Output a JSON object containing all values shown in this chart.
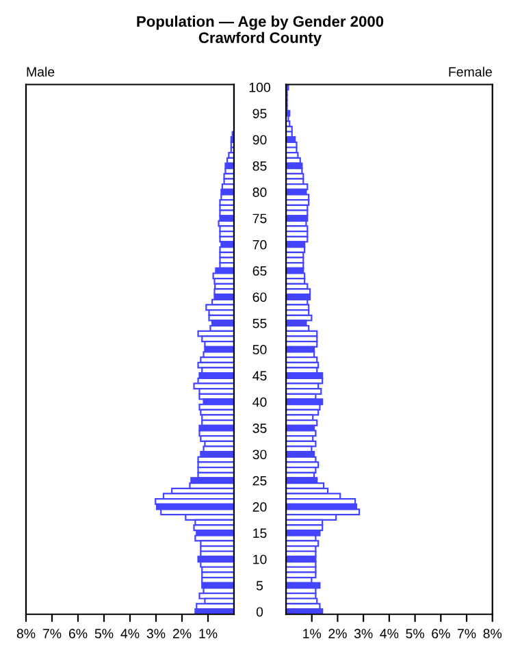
{
  "chart_data": [
    {
      "type": "bar",
      "orientation": "horizontal",
      "title": "Population — Age by Gender 2000",
      "subtitle": "Crawford County",
      "annotations": [
        "Male"
      ],
      "categories": [
        "100",
        null,
        null,
        null,
        null,
        "95",
        null,
        null,
        null,
        null,
        "90",
        null,
        null,
        null,
        null,
        "85",
        null,
        null,
        null,
        null,
        "80",
        null,
        null,
        null,
        null,
        "75",
        null,
        null,
        null,
        null,
        "70",
        null,
        null,
        null,
        null,
        "65",
        null,
        null,
        null,
        null,
        "60",
        null,
        null,
        null,
        null,
        "55",
        null,
        null,
        null,
        null,
        "50",
        null,
        null,
        null,
        null,
        "45",
        null,
        null,
        null,
        null,
        "40",
        null,
        null,
        null,
        null,
        "35",
        null,
        null,
        null,
        null,
        "30",
        null,
        null,
        null,
        null,
        "25",
        null,
        null,
        null,
        null,
        "20",
        null,
        null,
        null,
        null,
        "15",
        null,
        null,
        null,
        null,
        "10",
        null,
        null,
        null,
        null,
        "5",
        null,
        null,
        null,
        null,
        "0"
      ],
      "values": [
        null,
        null,
        null,
        null,
        null,
        null,
        null,
        null,
        null,
        0.06,
        0.11,
        0.11,
        0.11,
        0.2,
        0.26,
        0.33,
        0.33,
        0.38,
        0.38,
        0.45,
        0.49,
        0.49,
        0.54,
        0.54,
        0.54,
        0.54,
        0.59,
        0.54,
        0.54,
        0.54,
        0.49,
        0.54,
        0.54,
        0.54,
        0.54,
        0.7,
        0.8,
        0.75,
        0.73,
        0.75,
        0.75,
        0.84,
        1.07,
        0.96,
        0.96,
        0.84,
        0.91,
        1.38,
        1.23,
        1.12,
        1.12,
        1.17,
        1.28,
        1.38,
        1.23,
        1.33,
        1.38,
        1.54,
        1.33,
        1.33,
        1.17,
        1.33,
        1.28,
        1.23,
        1.23,
        1.33,
        1.33,
        1.28,
        1.12,
        1.17,
        1.28,
        1.38,
        1.38,
        1.38,
        1.38,
        1.65,
        1.7,
        2.39,
        2.71,
        3.02,
        2.97,
        2.81,
        1.86,
        1.49,
        1.54,
        1.44,
        1.49,
        1.28,
        1.28,
        1.28,
        1.38,
        1.28,
        1.23,
        1.23,
        1.23,
        1.23,
        1.17,
        1.33,
        1.12,
        1.44,
        1.49
      ],
      "colors": [
        "#4444ff",
        "#ffffff",
        "#ffffff",
        "#ffffff",
        "#ffffff",
        "#4444ff",
        "#ffffff",
        "#ffffff",
        "#ffffff",
        "#ffffff",
        "#4444ff",
        "#ffffff",
        "#ffffff",
        "#ffffff",
        "#ffffff",
        "#4444ff",
        "#ffffff",
        "#ffffff",
        "#ffffff",
        "#ffffff",
        "#4444ff",
        "#ffffff",
        "#ffffff",
        "#ffffff",
        "#ffffff",
        "#4444ff",
        "#ffffff",
        "#ffffff",
        "#ffffff",
        "#ffffff",
        "#4444ff",
        "#ffffff",
        "#ffffff",
        "#ffffff",
        "#ffffff",
        "#4444ff",
        "#ffffff",
        "#ffffff",
        "#ffffff",
        "#ffffff",
        "#4444ff",
        "#ffffff",
        "#ffffff",
        "#ffffff",
        "#ffffff",
        "#4444ff",
        "#ffffff",
        "#ffffff",
        "#ffffff",
        "#ffffff",
        "#4444ff",
        "#ffffff",
        "#ffffff",
        "#ffffff",
        "#ffffff",
        "#4444ff",
        "#ffffff",
        "#ffffff",
        "#ffffff",
        "#ffffff",
        "#4444ff",
        "#ffffff",
        "#ffffff",
        "#ffffff",
        "#ffffff",
        "#4444ff",
        "#ffffff",
        "#ffffff",
        "#ffffff",
        "#ffffff",
        "#4444ff",
        "#ffffff",
        "#ffffff",
        "#ffffff",
        "#ffffff",
        "#4444ff",
        "#ffffff",
        "#ffffff",
        "#ffffff",
        "#ffffff",
        "#4444ff",
        "#ffffff",
        "#ffffff",
        "#ffffff",
        "#ffffff",
        "#4444ff",
        "#ffffff",
        "#ffffff",
        "#ffffff",
        "#ffffff",
        "#4444ff",
        "#ffffff",
        "#ffffff",
        "#ffffff",
        "#ffffff",
        "#4444ff",
        "#ffffff",
        "#ffffff",
        "#ffffff",
        "#ffffff",
        "#4444ff"
      ],
      "xlim": [
        8,
        0
      ],
      "xticks": [
        {
          "value": 8,
          "label": "8%"
        },
        {
          "value": 7,
          "label": "7%"
        },
        {
          "value": 6,
          "label": "6%"
        },
        {
          "value": 5,
          "label": "5%"
        },
        {
          "value": 4,
          "label": "4%"
        },
        {
          "value": 3,
          "label": "3%"
        },
        {
          "value": 2,
          "label": "2%"
        },
        {
          "value": 1,
          "label": "1%"
        }
      ],
      "grid": false,
      "legend": false
    },
    {
      "type": "bar",
      "orientation": "horizontal",
      "annotations": [
        "Female"
      ],
      "tick_labels": "x",
      "categories": [
        "100",
        null,
        null,
        null,
        null,
        "95",
        null,
        null,
        null,
        null,
        "90",
        null,
        null,
        null,
        null,
        "85",
        null,
        null,
        null,
        null,
        "80",
        null,
        null,
        null,
        null,
        "75",
        null,
        null,
        null,
        null,
        "70",
        null,
        null,
        null,
        null,
        "65",
        null,
        null,
        null,
        null,
        "60",
        null,
        null,
        null,
        null,
        "55",
        null,
        null,
        null,
        null,
        "50",
        null,
        null,
        null,
        null,
        "45",
        null,
        null,
        null,
        null,
        "40",
        null,
        null,
        null,
        null,
        "35",
        null,
        null,
        null,
        null,
        "30",
        null,
        null,
        null,
        null,
        "25",
        null,
        null,
        null,
        null,
        "20",
        null,
        null,
        null,
        null,
        "15",
        null,
        null,
        null,
        null,
        "10",
        null,
        null,
        null,
        null,
        "5",
        null,
        null,
        null,
        null,
        "0"
      ],
      "values": [
        0.09,
        0.04,
        0.04,
        0.04,
        0.04,
        0.14,
        0.09,
        0.14,
        0.23,
        0.23,
        0.35,
        0.41,
        0.41,
        0.46,
        0.55,
        0.62,
        0.62,
        0.67,
        0.67,
        0.83,
        0.78,
        0.88,
        0.88,
        0.83,
        0.83,
        0.83,
        0.78,
        0.83,
        0.83,
        0.83,
        0.72,
        0.72,
        0.67,
        0.67,
        0.67,
        0.67,
        0.72,
        0.72,
        0.83,
        0.93,
        0.93,
        0.83,
        0.88,
        0.88,
        0.99,
        0.78,
        0.88,
        1.2,
        1.2,
        1.2,
        1.09,
        1.09,
        1.2,
        1.25,
        1.2,
        1.41,
        1.41,
        1.25,
        1.36,
        1.15,
        1.41,
        1.31,
        1.25,
        1.04,
        1.2,
        1.09,
        1.15,
        1.04,
        1.15,
        0.99,
        1.09,
        1.15,
        1.25,
        1.15,
        1.09,
        1.2,
        1.46,
        1.62,
        2.1,
        2.68,
        2.73,
        2.84,
        1.94,
        1.41,
        1.41,
        1.31,
        1.15,
        1.25,
        1.15,
        1.15,
        1.15,
        1.15,
        1.15,
        1.15,
        0.99,
        1.31,
        1.15,
        1.15,
        1.2,
        1.31,
        1.41
      ],
      "colors": [
        "#4444ff",
        "#ffffff",
        "#ffffff",
        "#ffffff",
        "#ffffff",
        "#4444ff",
        "#ffffff",
        "#ffffff",
        "#ffffff",
        "#ffffff",
        "#4444ff",
        "#ffffff",
        "#ffffff",
        "#ffffff",
        "#ffffff",
        "#4444ff",
        "#ffffff",
        "#ffffff",
        "#ffffff",
        "#ffffff",
        "#4444ff",
        "#ffffff",
        "#ffffff",
        "#ffffff",
        "#ffffff",
        "#4444ff",
        "#ffffff",
        "#ffffff",
        "#ffffff",
        "#ffffff",
        "#4444ff",
        "#ffffff",
        "#ffffff",
        "#ffffff",
        "#ffffff",
        "#4444ff",
        "#ffffff",
        "#ffffff",
        "#ffffff",
        "#ffffff",
        "#4444ff",
        "#ffffff",
        "#ffffff",
        "#ffffff",
        "#ffffff",
        "#4444ff",
        "#ffffff",
        "#ffffff",
        "#ffffff",
        "#ffffff",
        "#4444ff",
        "#ffffff",
        "#ffffff",
        "#ffffff",
        "#ffffff",
        "#4444ff",
        "#ffffff",
        "#ffffff",
        "#ffffff",
        "#ffffff",
        "#4444ff",
        "#ffffff",
        "#ffffff",
        "#ffffff",
        "#ffffff",
        "#4444ff",
        "#ffffff",
        "#ffffff",
        "#ffffff",
        "#ffffff",
        "#4444ff",
        "#ffffff",
        "#ffffff",
        "#ffffff",
        "#ffffff",
        "#4444ff",
        "#ffffff",
        "#ffffff",
        "#ffffff",
        "#ffffff",
        "#4444ff",
        "#ffffff",
        "#ffffff",
        "#ffffff",
        "#ffffff",
        "#4444ff",
        "#ffffff",
        "#ffffff",
        "#ffffff",
        "#ffffff",
        "#4444ff",
        "#ffffff",
        "#ffffff",
        "#ffffff",
        "#ffffff",
        "#4444ff",
        "#ffffff",
        "#ffffff",
        "#ffffff",
        "#ffffff",
        "#4444ff"
      ],
      "xlim": [
        0,
        8
      ],
      "xticks": [
        {
          "value": 1,
          "label": "1%"
        },
        {
          "value": 2,
          "label": "2%"
        },
        {
          "value": 3,
          "label": "3%"
        },
        {
          "value": 4,
          "label": "4%"
        },
        {
          "value": 5,
          "label": "5%"
        },
        {
          "value": 6,
          "label": "6%"
        },
        {
          "value": 7,
          "label": "7%"
        },
        {
          "value": 8,
          "label": "8%"
        }
      ],
      "grid": false,
      "legend": false
    }
  ]
}
